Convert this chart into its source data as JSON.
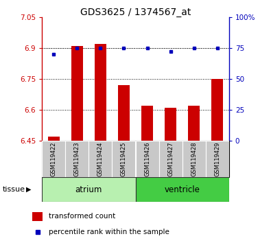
{
  "title": "GDS3625 / 1374567_at",
  "samples": [
    "GSM119422",
    "GSM119423",
    "GSM119424",
    "GSM119425",
    "GSM119426",
    "GSM119427",
    "GSM119428",
    "GSM119429"
  ],
  "transformed_count": [
    6.47,
    6.91,
    6.92,
    6.72,
    6.62,
    6.61,
    6.62,
    6.75
  ],
  "percentile_rank": [
    70,
    75,
    75,
    75,
    75,
    72,
    75,
    75
  ],
  "ylim_left": [
    6.45,
    7.05
  ],
  "ylim_right": [
    0,
    100
  ],
  "yticks_left": [
    6.45,
    6.6,
    6.75,
    6.9,
    7.05
  ],
  "yticks_right": [
    0,
    25,
    50,
    75,
    100
  ],
  "ytick_labels_left": [
    "6.45",
    "6.6",
    "6.75",
    "6.9",
    "7.05"
  ],
  "ytick_labels_right": [
    "0",
    "25",
    "50",
    "75",
    "100%"
  ],
  "groups": [
    {
      "label": "atrium",
      "samples": [
        0,
        1,
        2,
        3
      ],
      "color": "#b8f0b0"
    },
    {
      "label": "ventricle",
      "samples": [
        4,
        5,
        6,
        7
      ],
      "color": "#44cc44"
    }
  ],
  "bar_color": "#cc0000",
  "dot_color": "#0000bb",
  "bar_width": 0.5,
  "tissue_label": "tissue",
  "legend_bar_label": "transformed count",
  "legend_dot_label": "percentile rank within the sample",
  "sample_box_color": "#c8c8c8",
  "background_color": "#ffffff",
  "grid_color": "#000000",
  "left_axis_color": "#cc0000",
  "right_axis_color": "#0000bb",
  "figsize": [
    3.95,
    3.54
  ],
  "dpi": 100
}
